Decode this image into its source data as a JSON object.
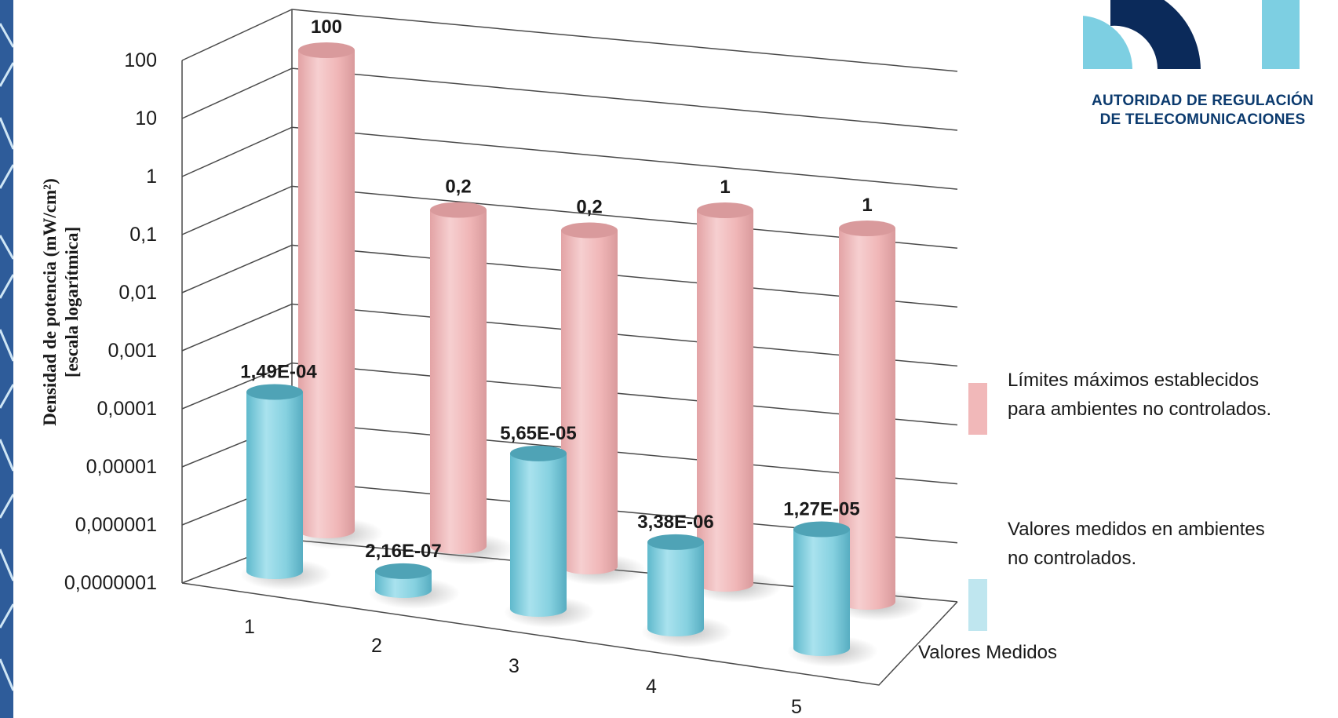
{
  "logo": {
    "line1": "AUTORIDAD DE REGULACIÓN",
    "line2": "DE TELECOMUNICACIONES"
  },
  "colors": {
    "limit_bar": "#f1b8b9",
    "measured_bar": "#86d1e0",
    "logo_dark": "#0b2a5a",
    "logo_light": "#7dcfe2",
    "stripe": "#2e5c9a"
  },
  "legend": {
    "limits_line1": "Límites  máximos establecidos",
    "limits_line2": "para ambientes no controlados.",
    "measured_line1": "Valores medidos en ambientes",
    "measured_line2": " no controlados.",
    "series_label": "Valores Medidos"
  },
  "chart_data": {
    "type": "bar",
    "style": "3d-cylinder",
    "ylabel_line1": "Densidad de potencia (mW/cm²)",
    "ylabel_line2": "[escala logarítmica]",
    "yscale": "log",
    "ylim": [
      1e-07,
      100
    ],
    "ytick_labels": [
      "100",
      "10",
      "1",
      "0,1",
      "0,01",
      "0,001",
      "0,0001",
      "0,00001",
      "0,000001",
      "0,0000001"
    ],
    "grid": true,
    "legend_position": "right",
    "categories": [
      "1",
      "2",
      "3",
      "4",
      "5"
    ],
    "series": [
      {
        "name": "Límites  máximos establecidos para ambientes no controlados.",
        "values": [
          100,
          0.2,
          0.2,
          1,
          1
        ],
        "labels": [
          "100",
          "0,2",
          "0,2",
          "1",
          "1"
        ]
      },
      {
        "name": "Valores Medidos",
        "values": [
          0.000149,
          2.16e-07,
          5.65e-05,
          3.38e-06,
          1.27e-05
        ],
        "labels": [
          "1,49E-04",
          "2,16E-07",
          "5,65E-05",
          "3,38E-06",
          "1,27E-05"
        ]
      }
    ]
  }
}
